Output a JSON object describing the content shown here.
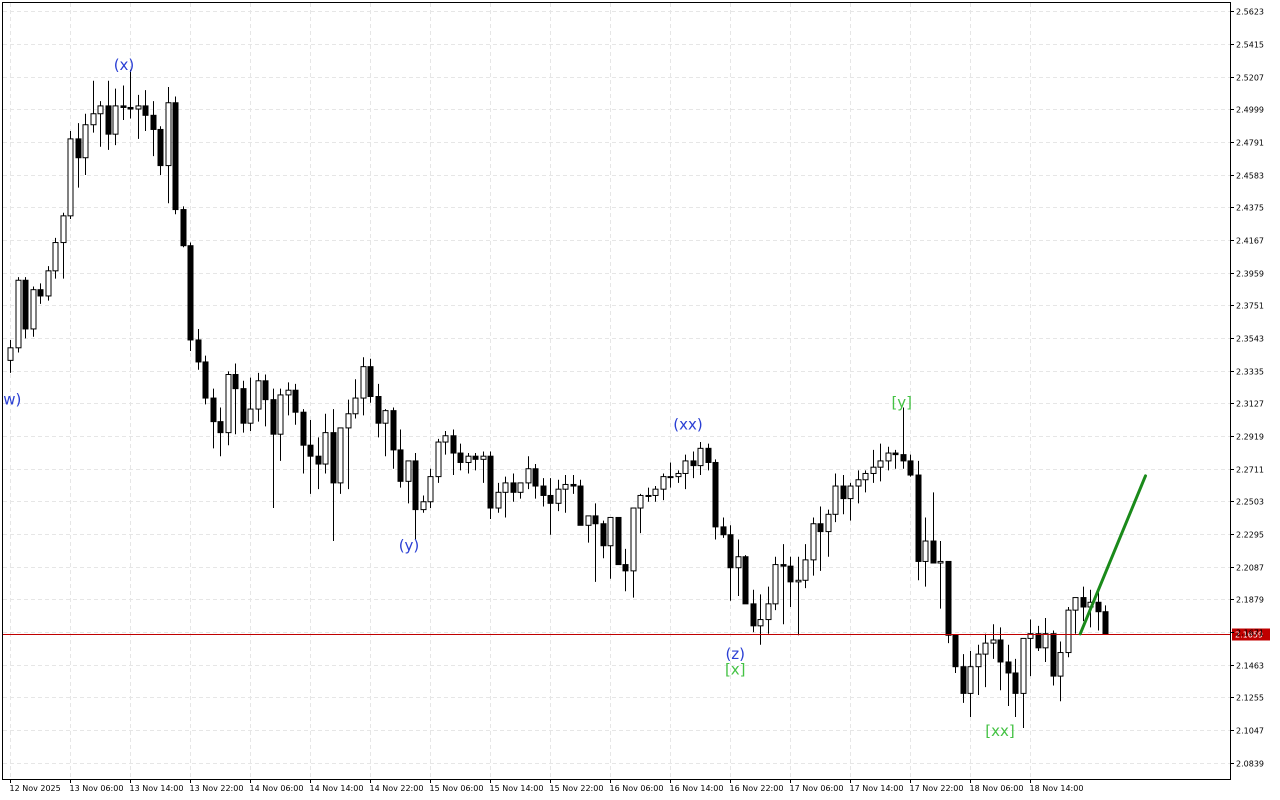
{
  "chart_data": {
    "type": "candlestick",
    "grid": true,
    "y_range": [
      2.0735,
      2.5675
    ],
    "y_ticks": [
      "2.5623",
      "2.5415",
      "2.5207",
      "2.4999",
      "2.4791",
      "2.4583",
      "2.4375",
      "2.4167",
      "2.3959",
      "2.3751",
      "2.3543",
      "2.3335",
      "2.3127",
      "2.2919",
      "2.2711",
      "2.2503",
      "2.2295",
      "2.2087",
      "2.1879",
      "2.1671",
      "2.1463",
      "2.1255",
      "2.1047",
      "2.0839"
    ],
    "x_labels": [
      "12 Nov 2025",
      "13 Nov 06:00",
      "13 Nov 14:00",
      "13 Nov 22:00",
      "14 Nov 06:00",
      "14 Nov 14:00",
      "14 Nov 22:00",
      "15 Nov 06:00",
      "15 Nov 14:00",
      "15 Nov 22:00",
      "16 Nov 06:00",
      "16 Nov 14:00",
      "16 Nov 22:00",
      "17 Nov 06:00",
      "17 Nov 14:00",
      "17 Nov 22:00",
      "18 Nov 06:00",
      "18 Nov 14:00"
    ],
    "current_price": {
      "label": "2.1659",
      "value": 2.1659,
      "color": "#c00000"
    },
    "candles": [
      [
        2.34,
        2.353,
        2.332,
        2.348
      ],
      [
        2.348,
        2.393,
        2.345,
        2.391
      ],
      [
        2.391,
        2.393,
        2.354,
        2.36
      ],
      [
        2.36,
        2.387,
        2.355,
        2.385
      ],
      [
        2.385,
        2.389,
        2.376,
        2.381
      ],
      [
        2.381,
        2.4,
        2.378,
        2.397
      ],
      [
        2.397,
        2.418,
        2.392,
        2.415
      ],
      [
        2.415,
        2.434,
        2.392,
        2.432
      ],
      [
        2.432,
        2.486,
        2.43,
        2.481
      ],
      [
        2.481,
        2.491,
        2.45,
        2.469
      ],
      [
        2.469,
        2.497,
        2.458,
        2.49
      ],
      [
        2.49,
        2.518,
        2.485,
        2.497
      ],
      [
        2.497,
        2.505,
        2.476,
        2.502
      ],
      [
        2.502,
        2.518,
        2.474,
        2.484
      ],
      [
        2.484,
        2.513,
        2.477,
        2.502
      ],
      [
        2.502,
        2.515,
        2.493,
        2.501
      ],
      [
        2.501,
        2.525,
        2.494,
        2.5
      ],
      [
        2.5,
        2.509,
        2.481,
        2.502
      ],
      [
        2.502,
        2.512,
        2.486,
        2.496
      ],
      [
        2.496,
        2.505,
        2.47,
        2.487
      ],
      [
        2.487,
        2.489,
        2.458,
        2.464
      ],
      [
        2.464,
        2.514,
        2.44,
        2.504
      ],
      [
        2.504,
        2.508,
        2.433,
        2.436
      ],
      [
        2.436,
        2.438,
        2.412,
        2.413
      ],
      [
        2.413,
        2.415,
        2.346,
        2.353
      ],
      [
        2.353,
        2.36,
        2.334,
        2.339
      ],
      [
        2.339,
        2.343,
        2.312,
        2.316
      ],
      [
        2.316,
        2.322,
        2.284,
        2.301
      ],
      [
        2.301,
        2.31,
        2.279,
        2.294
      ],
      [
        2.294,
        2.333,
        2.286,
        2.331
      ],
      [
        2.331,
        2.338,
        2.293,
        2.322
      ],
      [
        2.322,
        2.327,
        2.294,
        2.3
      ],
      [
        2.3,
        2.329,
        2.295,
        2.309
      ],
      [
        2.309,
        2.332,
        2.301,
        2.327
      ],
      [
        2.327,
        2.331,
        2.298,
        2.315
      ],
      [
        2.315,
        2.322,
        2.246,
        2.293
      ],
      [
        2.293,
        2.322,
        2.276,
        2.318
      ],
      [
        2.318,
        2.326,
        2.305,
        2.321
      ],
      [
        2.321,
        2.325,
        2.299,
        2.307
      ],
      [
        2.307,
        2.309,
        2.268,
        2.286
      ],
      [
        2.286,
        2.302,
        2.255,
        2.279
      ],
      [
        2.279,
        2.291,
        2.258,
        2.274
      ],
      [
        2.274,
        2.306,
        2.268,
        2.294
      ],
      [
        2.294,
        2.309,
        2.225,
        2.262
      ],
      [
        2.262,
        2.297,
        2.255,
        2.297
      ],
      [
        2.297,
        2.315,
        2.258,
        2.306
      ],
      [
        2.306,
        2.328,
        2.303,
        2.316
      ],
      [
        2.316,
        2.342,
        2.305,
        2.336
      ],
      [
        2.336,
        2.341,
        2.313,
        2.317
      ],
      [
        2.317,
        2.325,
        2.291,
        2.3
      ],
      [
        2.3,
        2.309,
        2.279,
        2.308
      ],
      [
        2.308,
        2.31,
        2.271,
        2.283
      ],
      [
        2.283,
        2.296,
        2.259,
        2.263
      ],
      [
        2.263,
        2.274,
        2.249,
        2.276
      ],
      [
        2.276,
        2.281,
        2.226,
        2.245
      ],
      [
        2.245,
        2.254,
        2.243,
        2.25
      ],
      [
        2.25,
        2.271,
        2.246,
        2.266
      ],
      [
        2.266,
        2.29,
        2.262,
        2.288
      ],
      [
        2.288,
        2.295,
        2.28,
        2.292
      ],
      [
        2.292,
        2.296,
        2.267,
        2.281
      ],
      [
        2.281,
        2.287,
        2.27,
        2.275
      ],
      [
        2.275,
        2.281,
        2.268,
        2.279
      ],
      [
        2.279,
        2.281,
        2.27,
        2.277
      ],
      [
        2.277,
        2.282,
        2.262,
        2.279
      ],
      [
        2.279,
        2.282,
        2.239,
        2.246
      ],
      [
        2.246,
        2.262,
        2.243,
        2.256
      ],
      [
        2.256,
        2.266,
        2.24,
        2.262
      ],
      [
        2.262,
        2.268,
        2.25,
        2.256
      ],
      [
        2.256,
        2.259,
        2.252,
        2.262
      ],
      [
        2.262,
        2.279,
        2.258,
        2.271
      ],
      [
        2.271,
        2.274,
        2.252,
        2.26
      ],
      [
        2.26,
        2.265,
        2.247,
        2.254
      ],
      [
        2.254,
        2.265,
        2.229,
        2.249
      ],
      [
        2.249,
        2.264,
        2.244,
        2.258
      ],
      [
        2.258,
        2.267,
        2.243,
        2.261
      ],
      [
        2.261,
        2.267,
        2.255,
        2.26
      ],
      [
        2.26,
        2.264,
        2.236,
        2.235
      ],
      [
        2.235,
        2.241,
        2.224,
        2.241
      ],
      [
        2.241,
        2.249,
        2.199,
        2.236
      ],
      [
        2.236,
        2.238,
        2.214,
        2.222
      ],
      [
        2.222,
        2.24,
        2.201,
        2.24
      ],
      [
        2.24,
        2.24,
        2.213,
        2.21
      ],
      [
        2.21,
        2.22,
        2.193,
        2.206
      ],
      [
        2.206,
        2.246,
        2.189,
        2.246
      ],
      [
        2.246,
        2.255,
        2.23,
        2.254
      ],
      [
        2.254,
        2.259,
        2.25,
        2.254
      ],
      [
        2.254,
        2.26,
        2.25,
        2.258
      ],
      [
        2.258,
        2.268,
        2.251,
        2.266
      ],
      [
        2.266,
        2.275,
        2.259,
        2.266
      ],
      [
        2.266,
        2.27,
        2.262,
        2.268
      ],
      [
        2.268,
        2.28,
        2.258,
        2.276
      ],
      [
        2.276,
        2.282,
        2.265,
        2.273
      ],
      [
        2.273,
        2.288,
        2.267,
        2.284
      ],
      [
        2.284,
        2.287,
        2.27,
        2.275
      ],
      [
        2.275,
        2.277,
        2.226,
        2.234
      ],
      [
        2.234,
        2.24,
        2.227,
        2.229
      ],
      [
        2.229,
        2.235,
        2.187,
        2.208
      ],
      [
        2.208,
        2.226,
        2.19,
        2.215
      ],
      [
        2.215,
        2.216,
        2.186,
        2.185
      ],
      [
        2.185,
        2.194,
        2.167,
        2.171
      ],
      [
        2.171,
        2.191,
        2.159,
        2.175
      ],
      [
        2.175,
        2.196,
        2.166,
        2.185
      ],
      [
        2.185,
        2.215,
        2.181,
        2.21
      ],
      [
        2.21,
        2.223,
        2.172,
        2.209
      ],
      [
        2.209,
        2.215,
        2.183,
        2.199
      ],
      [
        2.199,
        2.215,
        2.165,
        2.2
      ],
      [
        2.2,
        2.223,
        2.195,
        2.213
      ],
      [
        2.213,
        2.24,
        2.203,
        2.236
      ],
      [
        2.236,
        2.247,
        2.206,
        2.231
      ],
      [
        2.231,
        2.245,
        2.215,
        2.242
      ],
      [
        2.242,
        2.268,
        2.237,
        2.26
      ],
      [
        2.26,
        2.267,
        2.242,
        2.252
      ],
      [
        2.252,
        2.262,
        2.238,
        2.26
      ],
      [
        2.26,
        2.27,
        2.249,
        2.264
      ],
      [
        2.264,
        2.27,
        2.256,
        2.268
      ],
      [
        2.268,
        2.283,
        2.262,
        2.272
      ],
      [
        2.272,
        2.287,
        2.263,
        2.276
      ],
      [
        2.276,
        2.285,
        2.27,
        2.281
      ],
      [
        2.281,
        2.283,
        2.271,
        2.28
      ],
      [
        2.28,
        2.31,
        2.271,
        2.276
      ],
      [
        2.276,
        2.28,
        2.266,
        2.267
      ],
      [
        2.267,
        2.276,
        2.2,
        2.212
      ],
      [
        2.212,
        2.24,
        2.196,
        2.225
      ],
      [
        2.225,
        2.256,
        2.213,
        2.211
      ],
      [
        2.211,
        2.225,
        2.182,
        2.212
      ],
      [
        2.212,
        2.212,
        2.16,
        2.165
      ],
      [
        2.165,
        2.163,
        2.141,
        2.145
      ],
      [
        2.145,
        2.153,
        2.122,
        2.128
      ],
      [
        2.128,
        2.155,
        2.113,
        2.145
      ],
      [
        2.145,
        2.159,
        2.127,
        2.153
      ],
      [
        2.153,
        2.166,
        2.132,
        2.16
      ],
      [
        2.16,
        2.172,
        2.15,
        2.162
      ],
      [
        2.162,
        2.17,
        2.13,
        2.148
      ],
      [
        2.148,
        2.159,
        2.12,
        2.141
      ],
      [
        2.141,
        2.15,
        2.113,
        2.128
      ],
      [
        2.128,
        2.163,
        2.106,
        2.163
      ],
      [
        2.163,
        2.175,
        2.139,
        2.166
      ],
      [
        2.166,
        2.171,
        2.155,
        2.157
      ],
      [
        2.157,
        2.176,
        2.148,
        2.166
      ],
      [
        2.166,
        2.168,
        2.133,
        2.139
      ],
      [
        2.139,
        2.161,
        2.123,
        2.154
      ],
      [
        2.154,
        2.183,
        2.151,
        2.181
      ],
      [
        2.181,
        2.188,
        2.166,
        2.189
      ],
      [
        2.189,
        2.196,
        2.174,
        2.183
      ],
      [
        2.183,
        2.194,
        2.17,
        2.186
      ],
      [
        2.186,
        2.193,
        2.168,
        2.18
      ],
      [
        2.18,
        2.184,
        2.166,
        2.166
      ]
    ],
    "projection": {
      "from": [
        142.7,
        2.1659
      ],
      "to": [
        151.4,
        2.2665
      ],
      "color": "#1a8a1a"
    },
    "wave_labels": [
      {
        "text": "(x)",
        "x": 15.2,
        "y": 2.525,
        "color": "#2a3fd4"
      },
      {
        "text": "(y)",
        "x": 53.2,
        "y": 2.219,
        "color": "#2a3fd4"
      },
      {
        "text": "(xx)",
        "x": 90.4,
        "y": 2.296,
        "color": "#2a3fd4"
      },
      {
        "text": "(z)",
        "x": 96.7,
        "y": 2.15,
        "color": "#2a3fd4"
      },
      {
        "text": "[x]",
        "x": 96.7,
        "y": 2.14,
        "color": "#44c244"
      },
      {
        "text": "[y]",
        "x": 118.9,
        "y": 2.31,
        "color": "#44c244"
      },
      {
        "text": "[xx]",
        "x": 132.0,
        "y": 2.101,
        "color": "#44c244"
      },
      {
        "text": "w)",
        "x": 0.3,
        "y": 2.312,
        "color": "#2a3fd4"
      }
    ]
  }
}
